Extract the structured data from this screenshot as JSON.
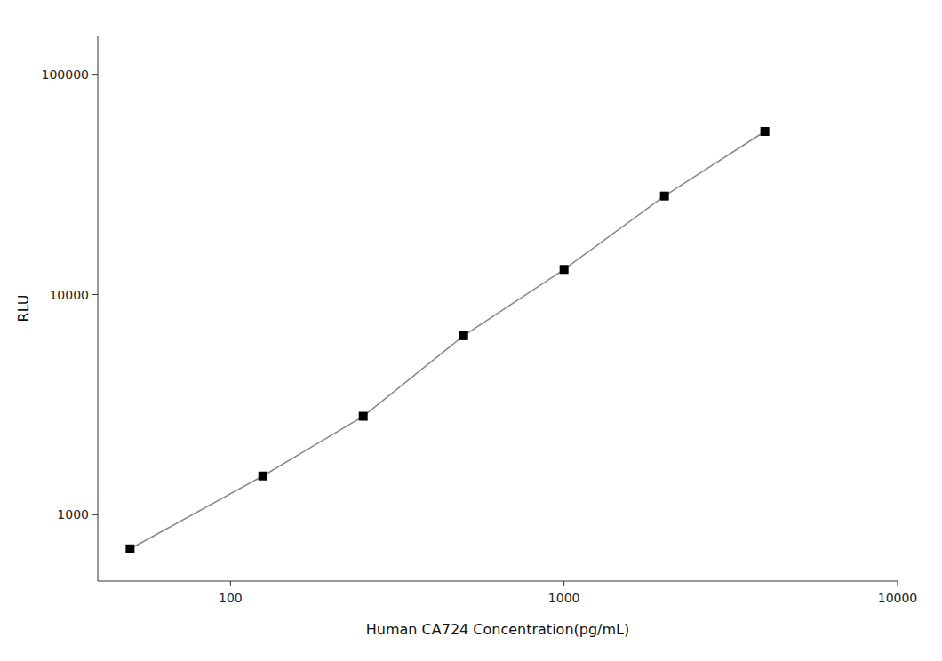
{
  "chart_data": {
    "type": "line",
    "xlabel": "Human CA724 Concentration(pg/mL)",
    "ylabel": "RLU",
    "x": [
      50,
      125,
      250,
      500,
      1000,
      2000,
      4000
    ],
    "series": [
      {
        "values": [
          700,
          1500,
          2800,
          6500,
          13000,
          28000,
          55000
        ],
        "color": "#888888",
        "colors": [
          "#000000",
          "#000000",
          "#000000",
          "#000000",
          "#000000",
          "#000000",
          "#000000"
        ],
        "marker": "square"
      }
    ],
    "xlim": [
      40,
      10000
    ],
    "ylim": [
      500,
      150000
    ],
    "xticks": [
      100,
      1000,
      10000
    ],
    "yticks": [
      1000,
      10000,
      100000
    ],
    "log": true,
    "grid": false
  }
}
